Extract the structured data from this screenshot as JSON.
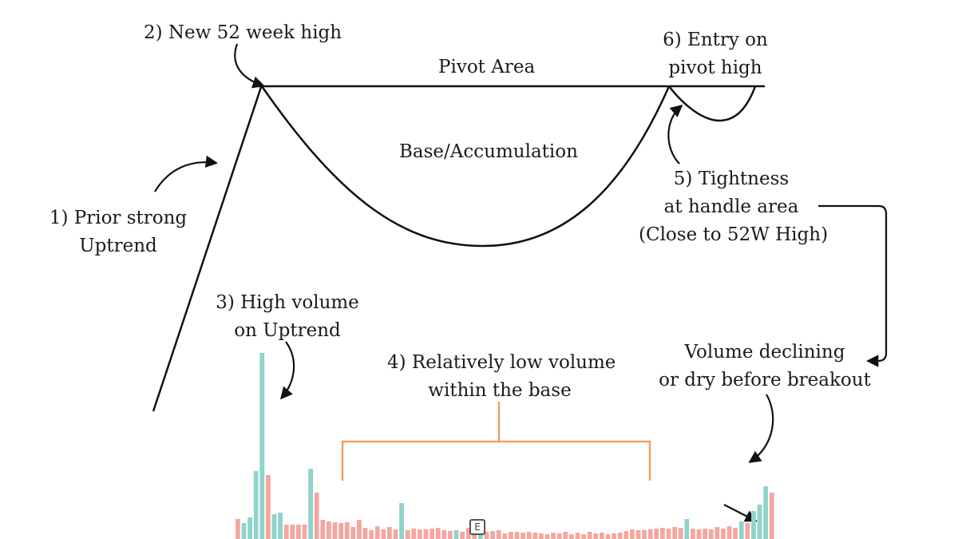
{
  "labels": {
    "new_high": "2) New 52 week high",
    "pivot_area": "Pivot Area",
    "entry": [
      "6) Entry on",
      "pivot high"
    ],
    "base": "Base/Accumulation",
    "tightness": [
      "5) Tightness",
      "at handle area",
      "(Close to 52W High)"
    ],
    "prior_uptrend": [
      "1) Prior strong",
      "Uptrend"
    ],
    "high_volume": [
      "3) High volume",
      "on Uptrend"
    ],
    "low_volume": [
      "4) Relatively low volume",
      "within the base"
    ],
    "volume_declining": [
      "Volume declining",
      "or dry before breakout"
    ]
  },
  "earnings_marker": "E",
  "colors": {
    "up_volume": "#8fd3cb",
    "down_volume": "#f3a7a1",
    "bracket": "#f2a063",
    "line": "#111111"
  },
  "chart_data": {
    "type": "bar",
    "title": "",
    "xlabel": "",
    "ylabel": "",
    "ylim": [
      0,
      240
    ],
    "series": [
      {
        "values": [
          25,
          20,
          27,
          85,
          233,
          80,
          31,
          33,
          18,
          18,
          18,
          18,
          88,
          58,
          24,
          22,
          21,
          20,
          21,
          15,
          24,
          14,
          11,
          16,
          12,
          15,
          12,
          45,
          11,
          13,
          12,
          12,
          13,
          14,
          11,
          10,
          11,
          9,
          14,
          12,
          20,
          9,
          10,
          11,
          7,
          9,
          9,
          8,
          9,
          8,
          7,
          6,
          8,
          7,
          9,
          6,
          8,
          6,
          9,
          7,
          8,
          6,
          7,
          8,
          10,
          12,
          11,
          11,
          12,
          13,
          14,
          13,
          15,
          14,
          25,
          13,
          12,
          13,
          12,
          15,
          13,
          16,
          14,
          22,
          20,
          35,
          43,
          66,
          58
        ],
        "directions": [
          "d",
          "u",
          "u",
          "u",
          "u",
          "d",
          "u",
          "u",
          "d",
          "d",
          "d",
          "d",
          "u",
          "d",
          "d",
          "d",
          "d",
          "d",
          "d",
          "d",
          "d",
          "d",
          "d",
          "d",
          "d",
          "d",
          "d",
          "u",
          "d",
          "d",
          "d",
          "d",
          "d",
          "d",
          "d",
          "d",
          "u",
          "d",
          "d",
          "d",
          "u",
          "d",
          "d",
          "d",
          "d",
          "d",
          "d",
          "d",
          "d",
          "d",
          "d",
          "d",
          "d",
          "d",
          "d",
          "d",
          "d",
          "d",
          "d",
          "d",
          "d",
          "d",
          "d",
          "d",
          "d",
          "d",
          "d",
          "d",
          "d",
          "d",
          "d",
          "d",
          "d",
          "d",
          "u",
          "d",
          "d",
          "d",
          "d",
          "d",
          "d",
          "d",
          "d",
          "u",
          "d",
          "u",
          "u",
          "u",
          "d"
        ]
      }
    ]
  }
}
